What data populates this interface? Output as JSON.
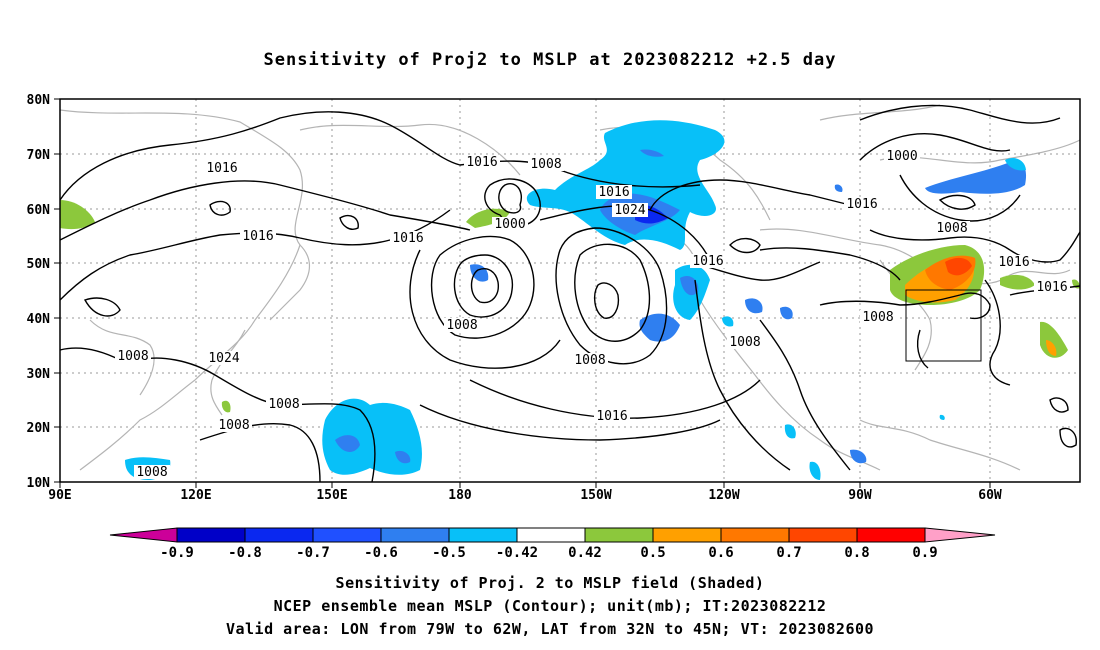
{
  "title": "Sensitivity of Proj2 to MSLP at 2023082212 +2.5 day",
  "lat_labels": [
    "80N",
    "70N",
    "60N",
    "50N",
    "40N",
    "30N",
    "20N",
    "10N"
  ],
  "lon_labels": [
    "90E",
    "120E",
    "150E",
    "180",
    "150W",
    "120W",
    "90W",
    "60W"
  ],
  "contour_labels": [
    {
      "text": "1016"
    },
    {
      "text": "1016"
    },
    {
      "text": "1016"
    },
    {
      "text": "1016"
    },
    {
      "text": "1008"
    },
    {
      "text": "1000"
    },
    {
      "text": "1016"
    },
    {
      "text": "1024"
    },
    {
      "text": "1000"
    },
    {
      "text": "1016"
    },
    {
      "text": "1008"
    },
    {
      "text": "1016"
    },
    {
      "text": "1016"
    },
    {
      "text": "1016"
    },
    {
      "text": "1008"
    },
    {
      "text": "1008"
    },
    {
      "text": "1008"
    },
    {
      "text": "1008"
    },
    {
      "text": "1024"
    },
    {
      "text": "1008"
    },
    {
      "text": "1008"
    },
    {
      "text": "1008"
    },
    {
      "text": "1016"
    },
    {
      "text": "1008"
    }
  ],
  "colorbar": {
    "labels": [
      "-0.9",
      "-0.8",
      "-0.7",
      "-0.6",
      "-0.5",
      "-0.42",
      "0.42",
      "0.5",
      "0.6",
      "0.7",
      "0.8",
      "0.9"
    ],
    "colors": [
      "#0000c8",
      "#0a28f0",
      "#2050ff",
      "#2f7ff0",
      "#08c0f8",
      "#ffffff",
      "#8cc83c",
      "#ffa000",
      "#ff7800",
      "#ff4600",
      "#ff0000"
    ],
    "left_arrow": "#cc0099",
    "right_arrow": "#ffa0c8"
  },
  "footer": {
    "line1": "Sensitivity of Proj. 2 to MSLP field (Shaded)",
    "line2": "NCEP ensemble mean MSLP (Contour); unit(mb); IT:2023082212",
    "line3": "Valid area: LON from 79W to 62W, LAT from 32N to 45N; VT: 2023082600"
  }
}
